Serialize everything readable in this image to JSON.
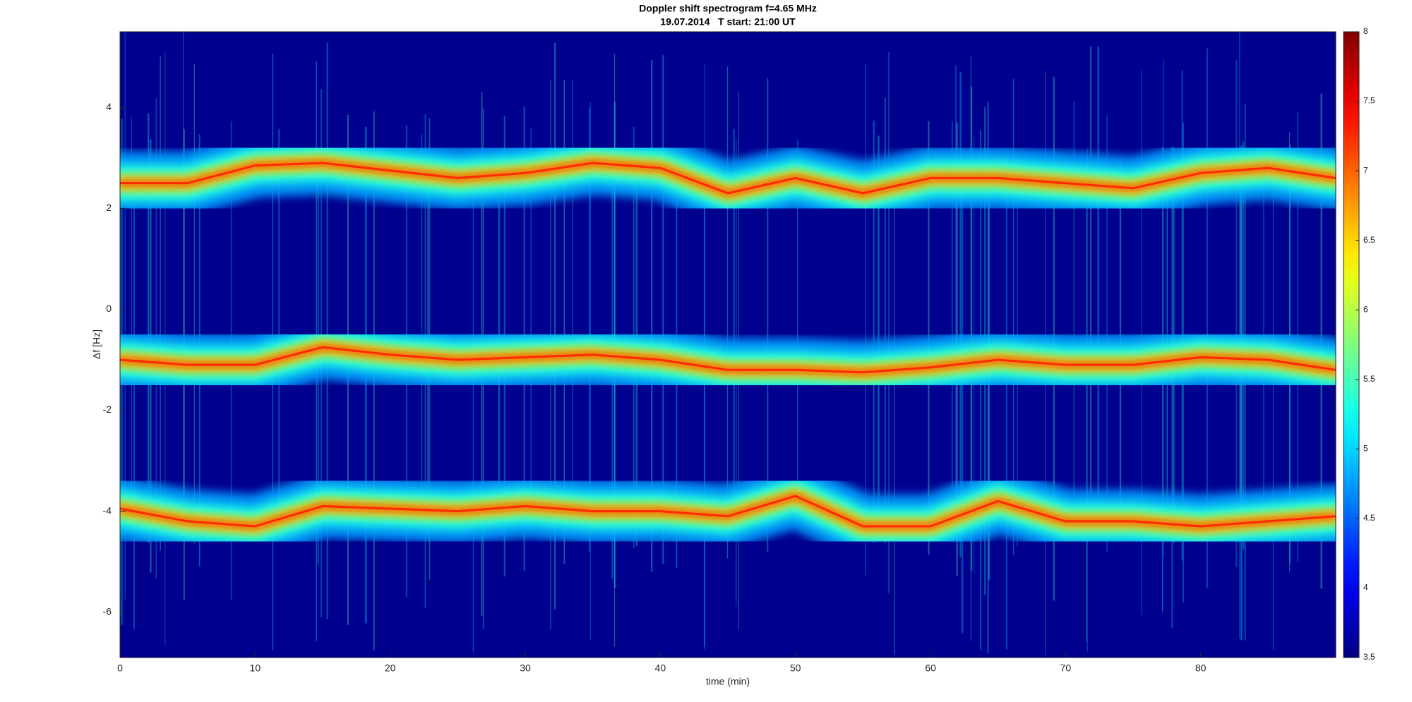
{
  "chart_data": {
    "type": "spectrogram",
    "title": "Doppler shift spectrogram f=4.65 MHz",
    "subtitle": "19.07.2014   T start: 21:00 UT",
    "x_label": "time (min)",
    "y_label": "Δf [Hz]",
    "xlim": [
      0,
      90
    ],
    "xticks": [
      0,
      10,
      20,
      30,
      40,
      50,
      60,
      70,
      80
    ],
    "ylim": [
      -6.9,
      5.5
    ],
    "yticks": [
      -6,
      -4,
      -2,
      0,
      2,
      4
    ],
    "x": [
      0,
      5,
      10,
      15,
      20,
      25,
      30,
      35,
      40,
      45,
      50,
      55,
      60,
      65,
      70,
      75,
      80,
      85,
      90
    ],
    "series": [
      {
        "color": "#ff2a00",
        "values": [
          2.5,
          2.5,
          2.85,
          2.9,
          2.75,
          2.6,
          2.7,
          2.9,
          2.8,
          2.3,
          2.6,
          2.3,
          2.6,
          2.6,
          2.5,
          2.4,
          2.7,
          2.8,
          2.6
        ]
      },
      {
        "color": "#ff2a00",
        "values": [
          -1.0,
          -1.1,
          -1.1,
          -0.75,
          -0.9,
          -1.0,
          -0.95,
          -0.9,
          -1.0,
          -1.2,
          -1.2,
          -1.25,
          -1.15,
          -1.0,
          -1.1,
          -1.1,
          -0.95,
          -1.0,
          -1.2
        ]
      },
      {
        "color": "#ff2a00",
        "values": [
          -3.95,
          -4.2,
          -4.3,
          -3.9,
          -3.95,
          -4.0,
          -3.9,
          -4.0,
          -4.0,
          -4.1,
          -3.7,
          -4.3,
          -4.3,
          -3.8,
          -4.2,
          -4.2,
          -4.3,
          -4.2,
          -4.1
        ]
      }
    ],
    "colormap": "jet",
    "background_color": "#00008f",
    "clim": [
      3.5,
      8
    ],
    "cticks": [
      3.5,
      4,
      4.5,
      5,
      5.5,
      6,
      6.5,
      7,
      7.5,
      8
    ]
  }
}
